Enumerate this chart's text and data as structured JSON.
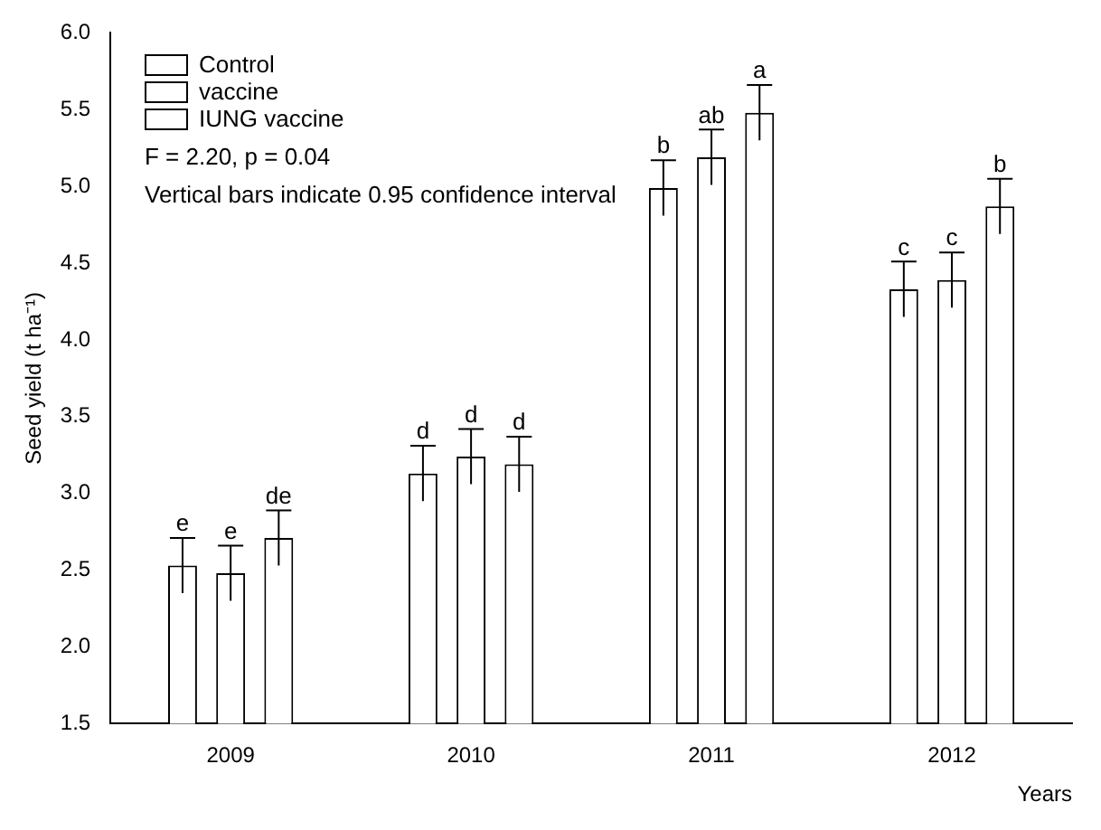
{
  "chart_data": {
    "type": "bar",
    "xlabel": "Years",
    "ylabel": "Seed yield (t ha⁻¹)",
    "categories": [
      "2009",
      "2010",
      "2011",
      "2012"
    ],
    "series": [
      {
        "name": "Control",
        "color": "#000000",
        "values": [
          2.53,
          3.13,
          4.99,
          4.33
        ],
        "errors": [
          0.18,
          0.18,
          0.18,
          0.18
        ]
      },
      {
        "name": "vaccine",
        "color": "#000000",
        "values": [
          2.48,
          3.24,
          5.19,
          4.39
        ],
        "errors": [
          0.18,
          0.18,
          0.18,
          0.18
        ]
      },
      {
        "name": "IUNG vaccine",
        "color": "#000000",
        "values": [
          2.71,
          3.19,
          5.48,
          4.87
        ],
        "errors": [
          0.18,
          0.18,
          0.18,
          0.18
        ]
      }
    ],
    "ylim": [
      1.5,
      6.0
    ],
    "yticks": [
      {
        "value": 1.5,
        "label": "1.5"
      },
      {
        "value": 2,
        "label": "2.0"
      },
      {
        "value": 2.5,
        "label": "2.5"
      },
      {
        "value": 3,
        "label": "3.0"
      },
      {
        "value": 3.5,
        "label": "3.5"
      },
      {
        "value": 4,
        "label": "4.0"
      },
      {
        "value": 4.5,
        "label": "4.5"
      },
      {
        "value": 5,
        "label": "5.0"
      },
      {
        "value": 5.5,
        "label": "5.5"
      },
      {
        "value": 6,
        "label": "6.0"
      }
    ],
    "grid": false,
    "legend": "top left",
    "annotations": [
      "F = 2.20, p = 0.04",
      "Vertical bars indicate 0.95 confidence interval",
      "e",
      "e",
      "de",
      "d",
      "d",
      "d",
      "b",
      "ab",
      "a",
      "c",
      "c",
      "b"
    ]
  }
}
